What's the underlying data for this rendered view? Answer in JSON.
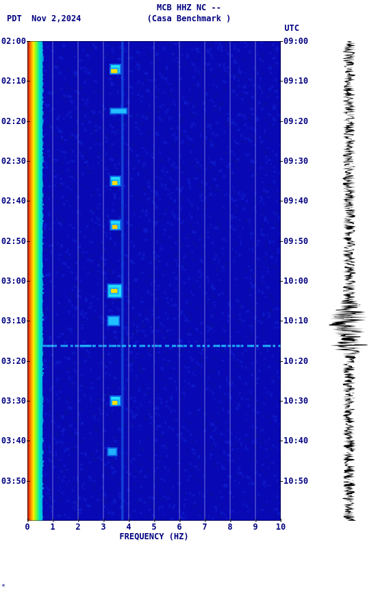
{
  "header": {
    "station": "MCB HHZ NC --",
    "tz_left": "PDT",
    "date": "Nov 2,2024",
    "station_name": "(Casa Benchmark )",
    "tz_right": "UTC"
  },
  "plot": {
    "type": "spectrogram",
    "xlabel": "FREQUENCY (HZ)",
    "xlim": [
      0,
      10
    ],
    "xtick_step": 1,
    "ylim_left": [
      "02:00",
      "04:00"
    ],
    "ylim_right": [
      "09:00",
      "11:00"
    ],
    "y_left_ticks": [
      "02:00",
      "02:10",
      "02:20",
      "02:30",
      "02:40",
      "02:50",
      "03:00",
      "03:10",
      "03:20",
      "03:30",
      "03:40",
      "03:50"
    ],
    "y_right_ticks": [
      "09:00",
      "09:10",
      "09:20",
      "09:30",
      "09:40",
      "09:50",
      "10:00",
      "10:10",
      "10:20",
      "10:30",
      "10:40",
      "10:50"
    ],
    "x_ticks": [
      "0",
      "1",
      "2",
      "3",
      "4",
      "5",
      "6",
      "7",
      "8",
      "9",
      "10"
    ],
    "background_color": "#0808b5",
    "gridline_color": "rgba(220,220,255,0.5)",
    "low_freq_band": {
      "x_start": 0.0,
      "x_end": 0.6,
      "gradient": [
        "#aa0000",
        "#ff7700",
        "#ffee00",
        "#66ff33",
        "#00ddcc",
        "#00a0e0"
      ]
    },
    "features": [
      {
        "type": "bright_spot",
        "x": 3.3,
        "y": "02:06",
        "w": 0.35,
        "h_min": 2,
        "color": "#22e0ff"
      },
      {
        "type": "bright_spot",
        "x": 3.3,
        "y": "02:07",
        "w": 0.25,
        "h_min": 1,
        "color": "#ffe000"
      },
      {
        "type": "bright_spot",
        "x": 3.3,
        "y": "02:17",
        "w": 0.6,
        "h_min": 1,
        "color": "#22c0ff"
      },
      {
        "type": "bright_spot",
        "x": 3.3,
        "y": "02:34",
        "w": 0.35,
        "h_min": 2,
        "color": "#22e0ff"
      },
      {
        "type": "bright_spot",
        "x": 3.35,
        "y": "02:35",
        "w": 0.2,
        "h_min": 1,
        "color": "#ffe000"
      },
      {
        "type": "bright_spot",
        "x": 3.3,
        "y": "02:45",
        "w": 0.35,
        "h_min": 2,
        "color": "#22e0ff"
      },
      {
        "type": "bright_spot",
        "x": 3.35,
        "y": "02:46",
        "w": 0.2,
        "h_min": 1,
        "color": "#ffd000"
      },
      {
        "type": "bright_spot",
        "x": 3.2,
        "y": "03:01",
        "w": 0.5,
        "h_min": 3,
        "color": "#20e0ff"
      },
      {
        "type": "bright_spot",
        "x": 3.3,
        "y": "03:02",
        "w": 0.25,
        "h_min": 1,
        "color": "#ffe000"
      },
      {
        "type": "bright_spot",
        "x": 3.2,
        "y": "03:09",
        "w": 0.4,
        "h_min": 2,
        "color": "#20c0ff"
      },
      {
        "type": "h_streak",
        "y": "03:16",
        "x_start": 0.6,
        "x_end": 10,
        "color": "#20c0ff"
      },
      {
        "type": "bright_spot",
        "x": 3.3,
        "y": "03:29",
        "w": 0.35,
        "h_min": 2,
        "color": "#22e0ff"
      },
      {
        "type": "bright_spot",
        "x": 3.35,
        "y": "03:30",
        "w": 0.2,
        "h_min": 1,
        "color": "#ffe000"
      },
      {
        "type": "bright_spot",
        "x": 3.2,
        "y": "03:42",
        "w": 0.3,
        "h_min": 1.5,
        "color": "#20b0ff"
      },
      {
        "type": "v_band",
        "x": 3.7,
        "w": 0.1,
        "color": "#1a60e8"
      }
    ],
    "text_color": "#000080",
    "font_family": "monospace",
    "label_fontsize": 12
  },
  "waveform": {
    "color": "#000000",
    "amp_base": 0.35,
    "bursts": [
      {
        "y": "03:10",
        "amp": 0.9,
        "span_min": 6
      },
      {
        "y": "03:16",
        "amp": 0.7,
        "span_min": 3
      }
    ]
  },
  "footnote": "*"
}
